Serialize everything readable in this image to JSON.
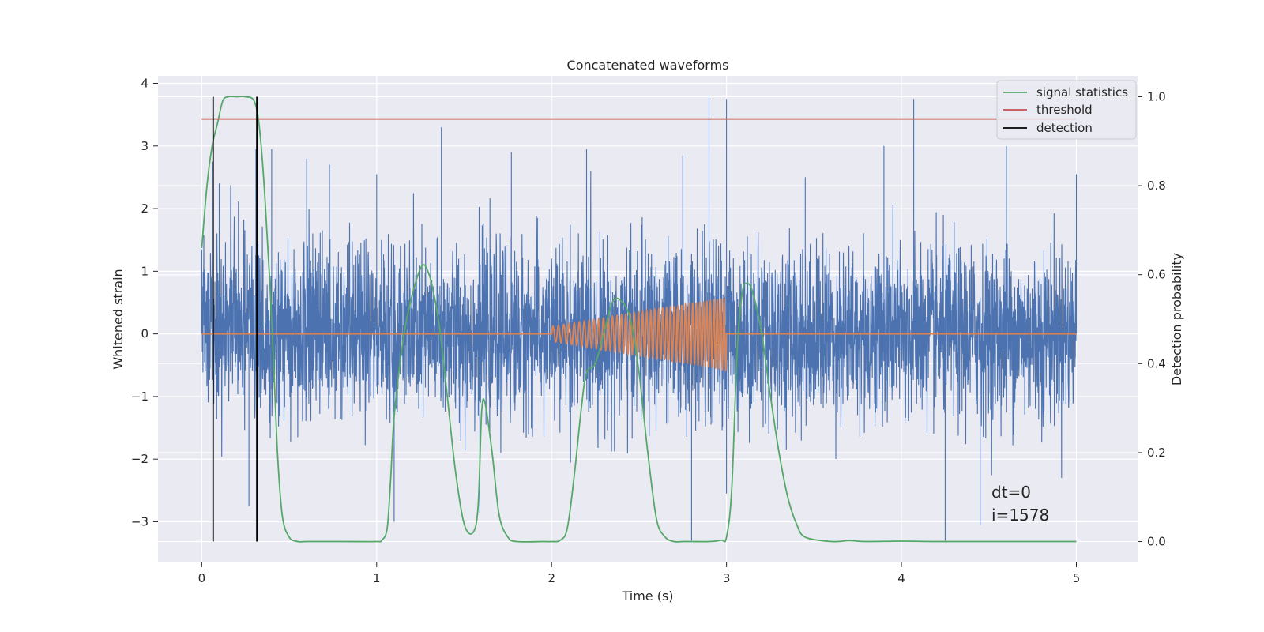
{
  "chart_data": {
    "type": "line",
    "title": "Concatenated waveforms",
    "xlabel": "Time (s)",
    "ylabel": "Whitened strain",
    "y2label": "Detection probability",
    "xlim": [
      -0.25,
      5.35
    ],
    "ylim": [
      -3.65,
      4.12
    ],
    "y2lim": [
      -0.047,
      1.047
    ],
    "xticks": [
      0,
      1,
      2,
      3,
      4,
      5
    ],
    "yticks": [
      -3,
      -2,
      -1,
      0,
      1,
      2,
      3,
      4
    ],
    "y2ticks": [
      0.0,
      0.2,
      0.4,
      0.6,
      0.8,
      1.0
    ],
    "y2ticklabels": [
      "0.0",
      "0.2",
      "0.4",
      "0.6",
      "0.8",
      "1.0"
    ],
    "grid": true,
    "legend_position": "top-right",
    "colors": {
      "background": "#eaeaf2",
      "strain": "#4c72b0",
      "injection": "#dd8452",
      "signal_statistics": "#55a868",
      "threshold": "#c44e52",
      "detection": "#000000"
    },
    "series": [
      {
        "key": "strain",
        "axis": "left",
        "description": "whitened noisy strain, sampled 0–5 s",
        "x_range": [
          0,
          5
        ],
        "amplitude_typical": 1.0,
        "peaks": [
          {
            "x": 0.0,
            "y": 1.35
          },
          {
            "x": 0.06,
            "y": 2.75
          },
          {
            "x": 0.1,
            "y": 2.4
          },
          {
            "x": 0.27,
            "y": -2.75
          },
          {
            "x": 0.31,
            "y": 2.95
          },
          {
            "x": 0.4,
            "y": 2.95
          },
          {
            "x": 0.6,
            "y": 2.8
          },
          {
            "x": 0.73,
            "y": 2.7
          },
          {
            "x": 1.0,
            "y": 2.55
          },
          {
            "x": 1.1,
            "y": -3.0
          },
          {
            "x": 1.37,
            "y": 3.3
          },
          {
            "x": 1.59,
            "y": -2.85
          },
          {
            "x": 1.77,
            "y": 2.9
          },
          {
            "x": 2.2,
            "y": 2.95
          },
          {
            "x": 2.75,
            "y": 2.85
          },
          {
            "x": 2.8,
            "y": -3.3
          },
          {
            "x": 2.9,
            "y": 3.8
          },
          {
            "x": 3.0,
            "y": 3.75
          },
          {
            "x": 3.0,
            "y": -2.55
          },
          {
            "x": 3.45,
            "y": 2.5
          },
          {
            "x": 3.9,
            "y": 3.0
          },
          {
            "x": 4.07,
            "y": 3.75
          },
          {
            "x": 4.25,
            "y": -3.3
          },
          {
            "x": 4.45,
            "y": -3.05
          },
          {
            "x": 4.6,
            "y": 3.0
          },
          {
            "x": 5.0,
            "y": 2.55
          }
        ]
      },
      {
        "key": "injection",
        "axis": "left",
        "description": "injected chirp between 2 s and 3 s, zero elsewhere",
        "x_range": [
          0,
          5
        ],
        "chirp_start": 2.0,
        "chirp_end": 3.0,
        "amplitude_start": 0.12,
        "amplitude_end": 0.58,
        "cycles": 42
      },
      {
        "key": "signal_statistics",
        "axis": "right",
        "name": "signal statistics",
        "x": [
          0.0,
          0.03,
          0.06,
          0.09,
          0.12,
          0.15,
          0.2,
          0.25,
          0.3,
          0.33,
          0.36,
          0.4,
          0.43,
          0.46,
          0.5,
          0.55,
          0.6,
          0.8,
          1.0,
          1.03,
          1.06,
          1.08,
          1.1,
          1.15,
          1.2,
          1.26,
          1.3,
          1.33,
          1.36,
          1.4,
          1.45,
          1.5,
          1.55,
          1.58,
          1.6,
          1.62,
          1.66,
          1.7,
          1.75,
          1.8,
          1.95,
          2.0,
          2.05,
          2.09,
          2.13,
          2.17,
          2.2,
          2.25,
          2.3,
          2.35,
          2.4,
          2.45,
          2.5,
          2.55,
          2.6,
          2.65,
          2.7,
          2.75,
          2.8,
          2.9,
          2.97,
          3.0,
          3.03,
          3.06,
          3.09,
          3.12,
          3.15,
          3.2,
          3.25,
          3.3,
          3.35,
          3.4,
          3.45,
          3.6,
          3.7,
          3.8,
          4.0,
          4.2,
          4.5,
          4.8,
          5.0
        ],
        "values": [
          0.66,
          0.8,
          0.89,
          0.94,
          0.99,
          1.0,
          1.0,
          1.0,
          0.99,
          0.93,
          0.78,
          0.5,
          0.22,
          0.06,
          0.01,
          0.0,
          0.0,
          0.0,
          0.0,
          0.003,
          0.03,
          0.14,
          0.28,
          0.45,
          0.55,
          0.62,
          0.6,
          0.55,
          0.48,
          0.34,
          0.16,
          0.04,
          0.02,
          0.08,
          0.29,
          0.31,
          0.2,
          0.06,
          0.01,
          0.0,
          0.0,
          0.0,
          0.003,
          0.03,
          0.15,
          0.3,
          0.38,
          0.4,
          0.47,
          0.54,
          0.54,
          0.5,
          0.38,
          0.2,
          0.05,
          0.01,
          0.0,
          0.0,
          0.0,
          0.0,
          0.003,
          0.01,
          0.12,
          0.42,
          0.56,
          0.58,
          0.56,
          0.47,
          0.33,
          0.2,
          0.1,
          0.04,
          0.01,
          0.0,
          0.002,
          0.0,
          0.001,
          0.0,
          0.0,
          0.0,
          0.0
        ]
      },
      {
        "key": "threshold",
        "axis": "right",
        "name": "threshold",
        "x": [
          0,
          5
        ],
        "value": 0.95
      },
      {
        "key": "detection",
        "axis": "right",
        "name": "detection",
        "x": [
          0.065,
          0.315
        ],
        "y_range": [
          0,
          1.0
        ]
      }
    ],
    "legend": [
      "signal statistics",
      "threshold",
      "detection"
    ],
    "annotations": [
      "dt=0",
      "i=1578"
    ],
    "noise_seed": 1578
  }
}
